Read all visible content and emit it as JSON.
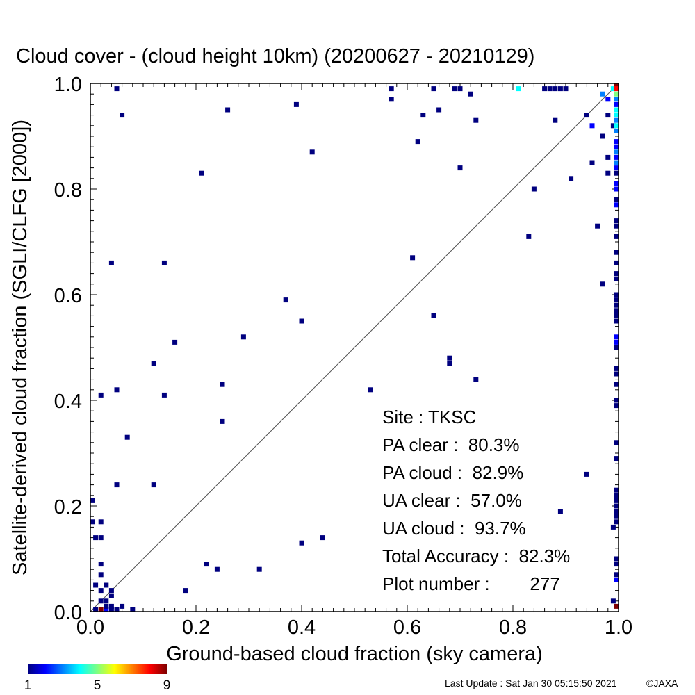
{
  "chart_data": {
    "type": "heatmap",
    "title": "Cloud cover - (cloud height 10km)  (20200627 - 20210129)",
    "xlabel": "Ground-based cloud fraction (sky camera)",
    "ylabel": "Satellite-derived cloud fraction (SGLI/CLFG [2000])",
    "xlim": [
      0,
      1
    ],
    "ylim": [
      0,
      1
    ],
    "xticks": [
      "0.0",
      "0.2",
      "0.4",
      "0.6",
      "0.8",
      "1.0"
    ],
    "yticks": [
      "0.0",
      "0.2",
      "0.4",
      "0.6",
      "0.8",
      "1.0"
    ],
    "diagonal": true,
    "colorbar": {
      "min": 1,
      "max": 9,
      "tick_labels": [
        "1",
        "5",
        "9"
      ],
      "colors": [
        "#00007f",
        "#0000ff",
        "#0080ff",
        "#00ffff",
        "#80ff80",
        "#ffff00",
        "#ff8000",
        "#ff0000",
        "#7f0000"
      ]
    },
    "stats": [
      {
        "label": "Site : TKSC"
      },
      {
        "label": "PA clear :  80.3%"
      },
      {
        "label": "PA cloud :  82.9%"
      },
      {
        "label": "UA clear :  57.0%"
      },
      {
        "label": "UA cloud :  93.7%"
      },
      {
        "label": "Total Accuracy :  82.3%"
      },
      {
        "label": "Plot number :        277"
      }
    ],
    "points": [
      [
        0.0,
        0.21,
        1
      ],
      [
        0.0,
        0.17,
        1
      ],
      [
        0.01,
        0.14,
        1
      ],
      [
        0.02,
        0.14,
        1
      ],
      [
        0.02,
        0.17,
        1
      ],
      [
        0.01,
        0.05,
        1
      ],
      [
        0.02,
        0.09,
        1
      ],
      [
        0.02,
        0.07,
        1
      ],
      [
        0.02,
        0.04,
        1
      ],
      [
        0.02,
        0.02,
        1
      ],
      [
        0.03,
        0.05,
        1
      ],
      [
        0.04,
        0.03,
        1
      ],
      [
        0.04,
        0.04,
        1
      ],
      [
        0.01,
        0.0,
        1
      ],
      [
        0.02,
        0.0,
        9
      ],
      [
        0.03,
        0.0,
        2
      ],
      [
        0.04,
        0.0,
        1
      ],
      [
        0.05,
        0.0,
        1
      ],
      [
        0.03,
        0.01,
        1
      ],
      [
        0.04,
        0.01,
        1
      ],
      [
        0.03,
        0.02,
        1
      ],
      [
        0.06,
        0.01,
        1
      ],
      [
        0.08,
        0.0,
        1
      ],
      [
        0.02,
        0.41,
        1
      ],
      [
        0.05,
        0.42,
        1
      ],
      [
        0.05,
        0.24,
        1
      ],
      [
        0.07,
        0.33,
        1
      ],
      [
        0.04,
        0.66,
        1
      ],
      [
        0.05,
        0.99,
        1
      ],
      [
        0.06,
        0.94,
        1
      ],
      [
        0.12,
        0.47,
        1
      ],
      [
        0.12,
        0.24,
        1
      ],
      [
        0.14,
        0.41,
        1
      ],
      [
        0.14,
        0.66,
        1
      ],
      [
        0.16,
        0.51,
        1
      ],
      [
        0.18,
        0.04,
        1
      ],
      [
        0.21,
        0.83,
        1
      ],
      [
        0.22,
        0.09,
        1
      ],
      [
        0.24,
        0.08,
        1
      ],
      [
        0.25,
        0.43,
        1
      ],
      [
        0.25,
        0.36,
        1
      ],
      [
        0.26,
        0.95,
        1
      ],
      [
        0.29,
        0.52,
        1
      ],
      [
        0.32,
        0.08,
        1
      ],
      [
        0.37,
        0.59,
        1
      ],
      [
        0.39,
        0.96,
        1
      ],
      [
        0.4,
        0.55,
        1
      ],
      [
        0.4,
        0.13,
        1
      ],
      [
        0.42,
        0.87,
        1
      ],
      [
        0.44,
        0.14,
        1
      ],
      [
        0.53,
        0.42,
        1
      ],
      [
        0.57,
        0.99,
        1
      ],
      [
        0.57,
        0.97,
        1
      ],
      [
        0.61,
        0.67,
        1
      ],
      [
        0.62,
        0.89,
        1
      ],
      [
        0.63,
        0.94,
        1
      ],
      [
        0.65,
        0.99,
        1
      ],
      [
        0.65,
        0.56,
        1
      ],
      [
        0.66,
        0.95,
        1
      ],
      [
        0.68,
        0.48,
        1
      ],
      [
        0.68,
        0.47,
        1
      ],
      [
        0.69,
        0.99,
        1
      ],
      [
        0.7,
        0.99,
        1
      ],
      [
        0.7,
        0.84,
        1
      ],
      [
        0.72,
        0.98,
        1
      ],
      [
        0.73,
        0.93,
        1
      ],
      [
        0.73,
        0.44,
        1
      ],
      [
        0.81,
        0.99,
        4
      ],
      [
        0.83,
        0.71,
        1
      ],
      [
        0.84,
        0.8,
        1
      ],
      [
        0.86,
        0.99,
        1
      ],
      [
        0.87,
        0.99,
        1
      ],
      [
        0.88,
        0.99,
        1
      ],
      [
        0.88,
        0.93,
        1
      ],
      [
        0.89,
        0.99,
        1
      ],
      [
        0.89,
        0.19,
        1
      ],
      [
        0.9,
        0.99,
        1
      ],
      [
        0.91,
        0.82,
        1
      ],
      [
        0.94,
        0.26,
        1
      ],
      [
        0.94,
        0.94,
        1
      ],
      [
        0.95,
        0.85,
        1
      ],
      [
        0.95,
        0.92,
        2
      ],
      [
        0.96,
        0.73,
        1
      ],
      [
        0.97,
        0.62,
        1
      ],
      [
        0.97,
        0.9,
        1
      ],
      [
        0.97,
        0.98,
        3
      ],
      [
        0.98,
        0.94,
        1
      ],
      [
        0.98,
        0.86,
        1
      ],
      [
        0.98,
        0.83,
        1
      ],
      [
        0.98,
        0.97,
        2
      ],
      [
        0.99,
        0.99,
        4
      ],
      [
        0.99,
        0.92,
        1
      ],
      [
        0.99,
        0.16,
        1
      ],
      [
        0.99,
        0.02,
        1
      ],
      [
        1.0,
        1.0,
        9
      ],
      [
        1.0,
        0.99,
        8
      ],
      [
        1.0,
        0.98,
        5
      ],
      [
        1.0,
        0.97,
        3
      ],
      [
        1.0,
        0.96,
        2
      ],
      [
        1.0,
        0.95,
        4
      ],
      [
        1.0,
        0.94,
        4
      ],
      [
        1.0,
        0.93,
        3
      ],
      [
        1.0,
        0.92,
        4
      ],
      [
        1.0,
        0.91,
        3
      ],
      [
        1.0,
        0.89,
        2
      ],
      [
        1.0,
        0.88,
        2
      ],
      [
        1.0,
        0.87,
        3
      ],
      [
        1.0,
        0.86,
        2
      ],
      [
        1.0,
        0.85,
        3
      ],
      [
        1.0,
        0.84,
        2
      ],
      [
        1.0,
        0.83,
        1
      ],
      [
        1.0,
        0.81,
        2
      ],
      [
        1.0,
        0.8,
        2
      ],
      [
        1.0,
        0.78,
        1
      ],
      [
        1.0,
        0.77,
        2
      ],
      [
        1.0,
        0.74,
        1
      ],
      [
        1.0,
        0.73,
        1
      ],
      [
        1.0,
        0.71,
        1
      ],
      [
        1.0,
        0.68,
        1
      ],
      [
        1.0,
        0.66,
        1
      ],
      [
        1.0,
        0.64,
        1
      ],
      [
        1.0,
        0.63,
        1
      ],
      [
        1.0,
        0.6,
        1
      ],
      [
        1.0,
        0.59,
        1
      ],
      [
        1.0,
        0.58,
        1
      ],
      [
        1.0,
        0.57,
        1
      ],
      [
        1.0,
        0.56,
        1
      ],
      [
        1.0,
        0.55,
        1
      ],
      [
        1.0,
        0.52,
        2
      ],
      [
        1.0,
        0.51,
        2
      ],
      [
        1.0,
        0.5,
        1
      ],
      [
        1.0,
        0.46,
        1
      ],
      [
        1.0,
        0.45,
        1
      ],
      [
        1.0,
        0.43,
        1
      ],
      [
        1.0,
        0.4,
        1
      ],
      [
        1.0,
        0.39,
        1
      ],
      [
        1.0,
        0.32,
        1
      ],
      [
        1.0,
        0.29,
        1
      ],
      [
        1.0,
        0.23,
        1
      ],
      [
        1.0,
        0.22,
        1
      ],
      [
        1.0,
        0.21,
        1
      ],
      [
        1.0,
        0.2,
        1
      ],
      [
        1.0,
        0.19,
        1
      ],
      [
        1.0,
        0.18,
        1
      ],
      [
        1.0,
        0.17,
        1
      ],
      [
        1.0,
        0.1,
        1
      ],
      [
        1.0,
        0.09,
        1
      ],
      [
        1.0,
        0.07,
        1
      ],
      [
        1.0,
        0.06,
        2
      ],
      [
        1.0,
        0.01,
        9
      ]
    ]
  },
  "footer": {
    "last_update": "Last Update : Sat Jan 30 05:15:50 2021",
    "copyright": "©JAXA"
  }
}
